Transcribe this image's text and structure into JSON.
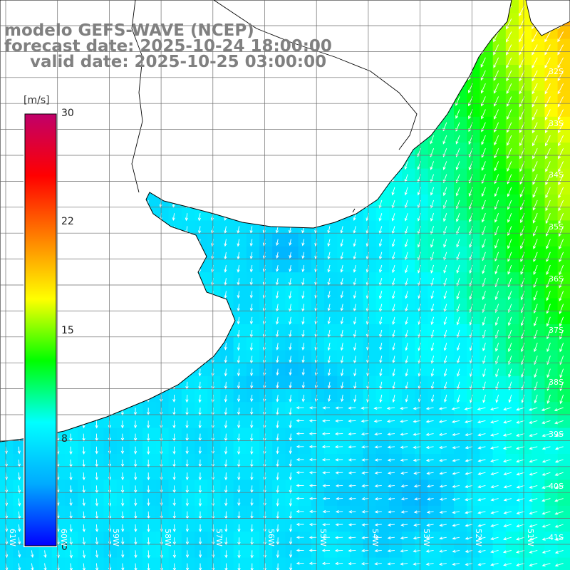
{
  "title": {
    "line1": "modelo GEFS-WAVE (NCEP)",
    "line2": "forecast date: 2025-10-24 18:00:00",
    "line3": "valid date: 2025-10-25 03:00:00"
  },
  "colorbar": {
    "unit": "[m/s]",
    "ticks": [
      "30",
      "22",
      "15",
      "8",
      "0"
    ],
    "range": [
      0,
      30
    ],
    "colors": [
      "#0000ff",
      "#00aaff",
      "#00ffff",
      "#00ff00",
      "#ffff00",
      "#ff8000",
      "#ff0000",
      "#c0006a"
    ]
  },
  "map": {
    "lat_labels": [
      "32S",
      "33S",
      "34S",
      "35S",
      "36S",
      "37S",
      "38S",
      "39S",
      "40S",
      "41S"
    ],
    "lon_labels": [
      "61W",
      "60W",
      "59W",
      "58W",
      "57W",
      "56W",
      "55W",
      "54W",
      "53W",
      "52W",
      "51W"
    ],
    "land_color": "#ffffff",
    "grid_color": "#6e6e6e",
    "coast_color": "#000000",
    "arrow_color": "#ffffff"
  }
}
